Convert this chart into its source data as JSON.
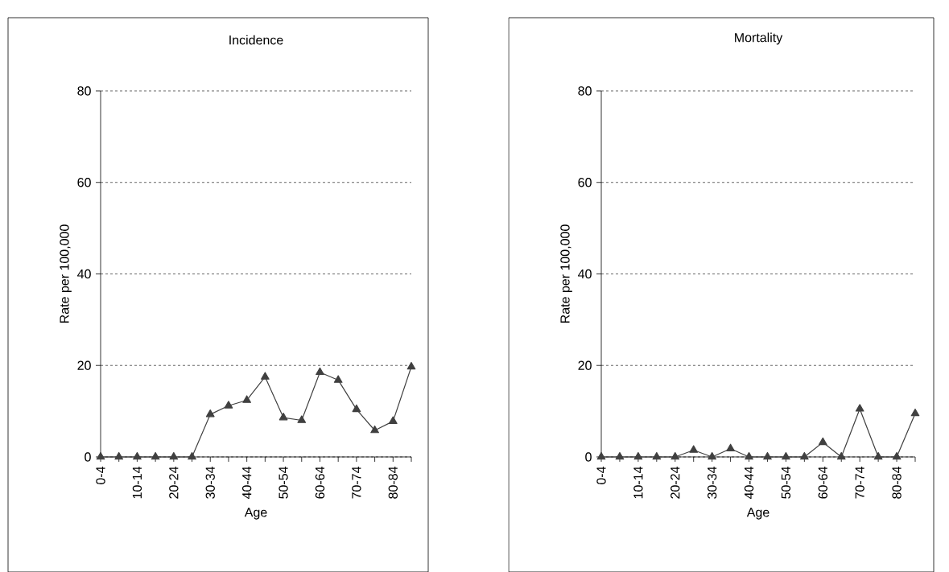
{
  "chart_data": [
    {
      "type": "line",
      "title": "Incidence",
      "xlabel": "Age",
      "ylabel": "Rate per 100,000",
      "categories": [
        "0-4",
        null,
        "10-14",
        null,
        "20-24",
        null,
        "30-34",
        null,
        "40-44",
        null,
        "50-54",
        null,
        "60-64",
        null,
        "70-74",
        null,
        "80-84",
        null
      ],
      "series": [
        {
          "color": "#404040",
          "values": [
            0,
            0,
            0,
            0,
            0,
            0,
            9.3,
            11.2,
            12.4,
            17.5,
            8.6,
            8.0,
            18.5,
            16.8,
            10.4,
            5.8,
            7.8,
            19.7
          ]
        }
      ],
      "ylim": [
        0,
        80
      ],
      "yticks": [
        0,
        20,
        40,
        60,
        80
      ],
      "grid": "y",
      "marker": "triangle",
      "line_style": "solid"
    },
    {
      "type": "line",
      "title": "Mortality",
      "xlabel": "Age",
      "ylabel": "Rate per 100,000",
      "categories": [
        "0-4",
        null,
        "10-14",
        null,
        "20-24",
        null,
        "30-34",
        null,
        "40-44",
        null,
        "50-54",
        null,
        "60-64",
        null,
        "70-74",
        null,
        "80-84",
        null
      ],
      "series": [
        {
          "color": "#404040",
          "values": [
            0,
            0,
            0,
            0,
            0,
            1.5,
            0,
            1.8,
            0,
            0,
            0,
            0,
            3.2,
            0,
            10.5,
            0,
            0,
            9.5
          ]
        }
      ],
      "ylim": [
        0,
        80
      ],
      "yticks": [
        0,
        20,
        40,
        60,
        80
      ],
      "grid": "y",
      "marker": "triangle",
      "line_style": "solid"
    }
  ]
}
